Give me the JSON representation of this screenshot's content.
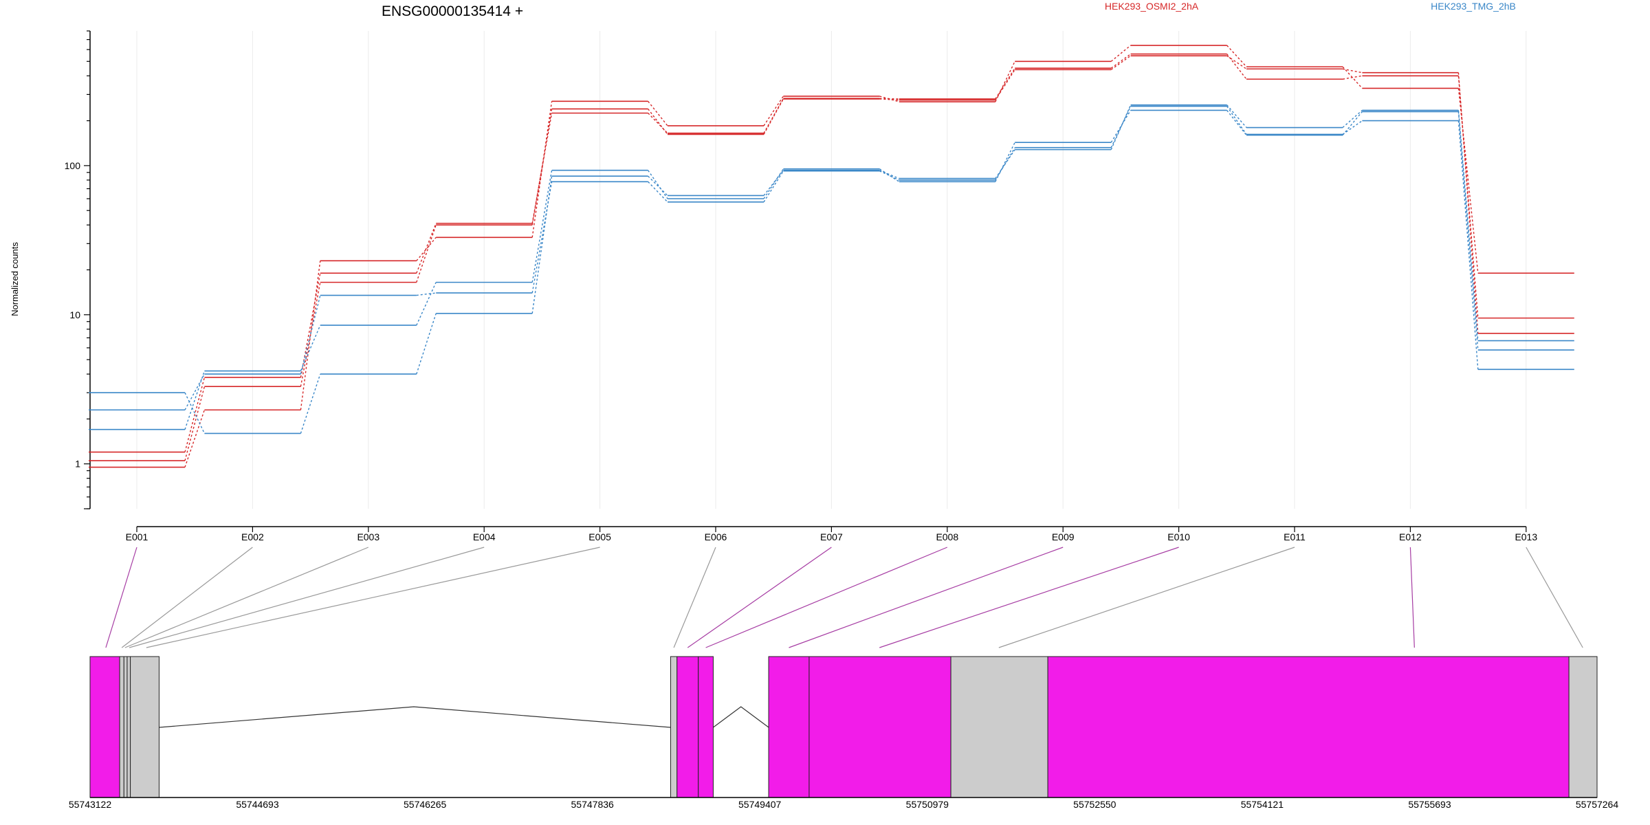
{
  "chart_data": [
    {
      "type": "line",
      "title": "ENSG00000135414 +",
      "ylabel": "Normalized counts",
      "yscale": "log",
      "ylim": [
        0.5,
        800
      ],
      "y_ticks": [
        1,
        10,
        100
      ],
      "x_ticks": [
        "E001",
        "E002",
        "E003",
        "E004",
        "E005",
        "E006",
        "E007",
        "E008",
        "E009",
        "E010",
        "E011",
        "E012",
        "E013"
      ],
      "legend": [
        {
          "name": "HEK293_OSMI2_2hA",
          "color": "#d62728",
          "placement": "top-center"
        },
        {
          "name": "HEK293_TMG_2hB",
          "color": "#3a87c8",
          "placement": "top-right"
        }
      ],
      "series": [
        {
          "group": "HEK293_OSMI2_2hA",
          "values": [
            1.05,
            3.3,
            16.5,
            40,
            240,
            162,
            280,
            275,
            440,
            545,
            445,
            420,
            7.5
          ]
        },
        {
          "group": "HEK293_OSMI2_2hA",
          "values": [
            1.2,
            3.8,
            19,
            41,
            225,
            165,
            282,
            280,
            450,
            560,
            380,
            400,
            9.5
          ]
        },
        {
          "group": "HEK293_OSMI2_2hA",
          "values": [
            0.95,
            2.3,
            23,
            33,
            270,
            185,
            292,
            268,
            500,
            640,
            460,
            330,
            19
          ]
        },
        {
          "group": "HEK293_TMG_2hB",
          "values": [
            3.0,
            1.6,
            4.0,
            10.2,
            85,
            63,
            93,
            82,
            128,
            255,
            180,
            235,
            6.7
          ]
        },
        {
          "group": "HEK293_TMG_2hB",
          "values": [
            2.3,
            4.0,
            13.5,
            14,
            78,
            57,
            92,
            80,
            132,
            250,
            162,
            200,
            4.3
          ]
        },
        {
          "group": "HEK293_TMG_2hB",
          "values": [
            1.7,
            4.2,
            8.5,
            16.5,
            93,
            60,
            95,
            78,
            143,
            235,
            160,
            230,
            5.8
          ]
        }
      ]
    },
    {
      "type": "gene-model",
      "x_ticks": [
        "55743122",
        "55744693",
        "55746265",
        "55747836",
        "55749407",
        "55750979",
        "55752550",
        "55754121",
        "55755693",
        "55757264"
      ],
      "xlim": [
        55743122,
        55757264
      ],
      "exons": [
        {
          "start": 55743122,
          "end": 55743400,
          "color": "#f21ce9"
        },
        {
          "start": 55743400,
          "end": 55743440,
          "color": "#cccccc"
        },
        {
          "start": 55743440,
          "end": 55743470,
          "color": "#cccccc"
        },
        {
          "start": 55743470,
          "end": 55743500,
          "color": "#cccccc"
        },
        {
          "start": 55743500,
          "end": 55743770,
          "color": "#cccccc"
        },
        {
          "start": 55748570,
          "end": 55748630,
          "color": "#cccccc"
        },
        {
          "start": 55748630,
          "end": 55748830,
          "color": "#f21ce9"
        },
        {
          "start": 55748830,
          "end": 55748970,
          "color": "#f21ce9"
        },
        {
          "start": 55749490,
          "end": 55749870,
          "color": "#f21ce9"
        },
        {
          "start": 55749870,
          "end": 55751200,
          "color": "#f21ce9"
        },
        {
          "start": 55751200,
          "end": 55752110,
          "color": "#cccccc"
        },
        {
          "start": 55752110,
          "end": 55757000,
          "color": "#f21ce9"
        },
        {
          "start": 55757000,
          "end": 55757264,
          "color": "#cccccc"
        }
      ],
      "introns": [
        {
          "from": 55743770,
          "to": 55748570,
          "apex": 55746160
        },
        {
          "from": 55748970,
          "to": 55749490,
          "apex": 55749230
        }
      ],
      "exon_links": [
        {
          "label": "E001",
          "pos": 55743270,
          "color": "#a63ca3"
        },
        {
          "label": "E002",
          "pos": 55743420,
          "color": "#999999"
        },
        {
          "label": "E003",
          "pos": 55743450,
          "color": "#999999"
        },
        {
          "label": "E004",
          "pos": 55743490,
          "color": "#999999"
        },
        {
          "label": "E005",
          "pos": 55743650,
          "color": "#999999"
        },
        {
          "label": "E006",
          "pos": 55748600,
          "color": "#999999"
        },
        {
          "label": "E007",
          "pos": 55748730,
          "color": "#a63ca3"
        },
        {
          "label": "E008",
          "pos": 55748900,
          "color": "#a63ca3"
        },
        {
          "label": "E009",
          "pos": 55749680,
          "color": "#a63ca3"
        },
        {
          "label": "E010",
          "pos": 55750530,
          "color": "#a63ca3"
        },
        {
          "label": "E011",
          "pos": 55751650,
          "color": "#999999"
        },
        {
          "label": "E012",
          "pos": 55755550,
          "color": "#a63ca3"
        },
        {
          "label": "E013",
          "pos": 55757130,
          "color": "#999999"
        }
      ]
    }
  ]
}
